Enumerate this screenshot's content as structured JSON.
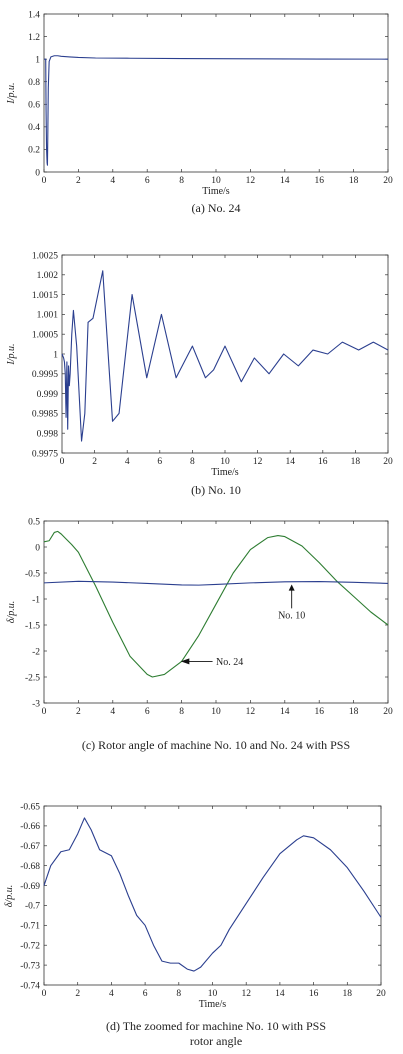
{
  "colors": {
    "blue": "#2b3f8f",
    "green": "#2e7d32",
    "axis": "#333333"
  },
  "chart_data": [
    {
      "type": "line",
      "caption": "(a) No. 24",
      "xlabel": "Time/s",
      "ylabel": "I/p.u.",
      "xlim": [
        0,
        20
      ],
      "ylim": [
        0,
        1.4
      ],
      "xticks": [
        "0",
        "2",
        "4",
        "6",
        "8",
        "10",
        "12",
        "14",
        "16",
        "18",
        "20"
      ],
      "yticks": [
        "0",
        "0.2",
        "0.4",
        "0.6",
        "0.8",
        "1",
        "1.2",
        "1.4"
      ],
      "series": [
        {
          "color": "#2b3f8f",
          "x": [
            0,
            0.05,
            0.1,
            0.12,
            0.15,
            0.18,
            0.2,
            0.22,
            0.25,
            0.3,
            0.4,
            0.6,
            0.8,
            1.0,
            1.5,
            2,
            3,
            5,
            8,
            12,
            16,
            20
          ],
          "y": [
            1.0,
            1.0,
            1.0,
            0.55,
            0.2,
            0.08,
            0.06,
            0.3,
            0.75,
            0.98,
            1.02,
            1.03,
            1.03,
            1.025,
            1.02,
            1.015,
            1.01,
            1.008,
            1.005,
            1.003,
            1.001,
            1.0
          ]
        }
      ]
    },
    {
      "type": "line",
      "caption": "(b) No. 10",
      "xlabel": "Time/s",
      "ylabel": "I/p.u.",
      "xlim": [
        0,
        20
      ],
      "ylim": [
        0.9975,
        1.0025
      ],
      "xticks": [
        "0",
        "2",
        "4",
        "6",
        "8",
        "10",
        "12",
        "14",
        "16",
        "18",
        "20"
      ],
      "yticks": [
        "0.9975",
        "0.998",
        "0.9985",
        "0.999",
        "0.9995",
        "1",
        "1.0005",
        "1.001",
        "1.0015",
        "1.002",
        "1.0025"
      ],
      "series": [
        {
          "color": "#2b3f8f",
          "x": [
            0,
            0.1,
            0.15,
            0.2,
            0.25,
            0.3,
            0.35,
            0.4,
            0.45,
            0.5,
            0.6,
            0.7,
            0.9,
            1.2,
            1.4,
            1.6,
            1.9,
            2.5,
            3.1,
            3.5,
            4.3,
            5.2,
            6.1,
            7.0,
            8.0,
            8.8,
            9.3,
            10.0,
            11.0,
            11.8,
            12.7,
            13.6,
            14.5,
            15.4,
            16.3,
            17.2,
            18.2,
            19.1,
            20
          ],
          "y": [
            1.0,
            0.9999,
            0.9998,
            0.9995,
            0.9984,
            0.9998,
            0.9981,
            0.9997,
            0.9992,
            0.9995,
            1.0005,
            1.0011,
            1.0002,
            0.9978,
            0.9985,
            1.0008,
            1.0009,
            1.0021,
            0.9983,
            0.9985,
            1.0015,
            0.9994,
            1.001,
            0.9994,
            1.0002,
            0.9994,
            0.9996,
            1.0002,
            0.9993,
            0.9999,
            0.9995,
            1.0,
            0.9997,
            1.0001,
            1.0,
            1.0003,
            1.0001,
            1.0003,
            1.0001
          ]
        }
      ]
    },
    {
      "type": "line",
      "caption": "(c) Rotor angle of machine No. 10 and No. 24 with PSS",
      "xlabel": "",
      "ylabel": "δ/p.u.",
      "xlim": [
        0,
        20
      ],
      "ylim": [
        -3,
        0.5
      ],
      "xticks": [
        "0",
        "2",
        "4",
        "6",
        "8",
        "10",
        "12",
        "14",
        "16",
        "18",
        "20"
      ],
      "yticks": [
        "-3",
        "-2.5",
        "-2",
        "-1.5",
        "-1",
        "-0.5",
        "0",
        "0.5"
      ],
      "annotations": [
        "No. 10",
        "No. 24"
      ],
      "series": [
        {
          "color": "#2e7d32",
          "x": [
            0,
            0.3,
            0.6,
            0.8,
            1.0,
            1.3,
            1.6,
            2.0,
            3,
            4,
            5,
            6,
            6.3,
            7,
            8,
            9,
            10,
            11,
            12,
            13,
            13.6,
            14,
            15,
            16,
            17,
            18,
            19,
            20
          ],
          "y": [
            0.1,
            0.12,
            0.28,
            0.3,
            0.25,
            0.15,
            0.05,
            -0.1,
            -0.75,
            -1.45,
            -2.1,
            -2.45,
            -2.5,
            -2.45,
            -2.2,
            -1.7,
            -1.1,
            -0.5,
            -0.05,
            0.18,
            0.22,
            0.2,
            0.02,
            -0.3,
            -0.65,
            -0.95,
            -1.25,
            -1.5
          ]
        },
        {
          "color": "#2b3f8f",
          "x": [
            0,
            2,
            4,
            6,
            8,
            9,
            10,
            12,
            14,
            16,
            18,
            20
          ],
          "y": [
            -0.69,
            -0.66,
            -0.675,
            -0.7,
            -0.73,
            -0.733,
            -0.72,
            -0.69,
            -0.67,
            -0.665,
            -0.68,
            -0.7
          ]
        }
      ]
    },
    {
      "type": "line",
      "caption": "(d) The zoomed for machine No. 10 with PSS rotor angle",
      "caption_lines": [
        "(d) The zoomed for machine No. 10 with PSS",
        "rotor angle"
      ],
      "xlabel": "Time/s",
      "ylabel": "δ/p.u.",
      "xlim": [
        0,
        20
      ],
      "ylim": [
        -0.74,
        -0.65
      ],
      "xticks": [
        "0",
        "2",
        "4",
        "6",
        "8",
        "10",
        "12",
        "14",
        "16",
        "18",
        "20"
      ],
      "yticks": [
        "-0.74",
        "-0.73",
        "-0.72",
        "-0.71",
        "-0.7",
        "-0.69",
        "-0.68",
        "-0.67",
        "-0.66",
        "-0.65"
      ],
      "series": [
        {
          "color": "#2b3f8f",
          "x": [
            0,
            0.4,
            1.0,
            1.5,
            2.0,
            2.4,
            2.8,
            3.3,
            4.0,
            4.5,
            5.0,
            5.5,
            6.0,
            6.5,
            7.0,
            7.5,
            8.0,
            8.5,
            8.9,
            9.3,
            10.0,
            10.5,
            11.0,
            12.0,
            13.0,
            14.0,
            15.0,
            15.4,
            16.0,
            17.0,
            18.0,
            19.0,
            20.0
          ],
          "y": [
            -0.69,
            -0.68,
            -0.673,
            -0.672,
            -0.664,
            -0.656,
            -0.662,
            -0.672,
            -0.675,
            -0.684,
            -0.695,
            -0.705,
            -0.71,
            -0.72,
            -0.728,
            -0.729,
            -0.729,
            -0.732,
            -0.733,
            -0.731,
            -0.724,
            -0.72,
            -0.712,
            -0.699,
            -0.686,
            -0.674,
            -0.667,
            -0.665,
            -0.666,
            -0.672,
            -0.681,
            -0.693,
            -0.706
          ]
        }
      ]
    }
  ]
}
